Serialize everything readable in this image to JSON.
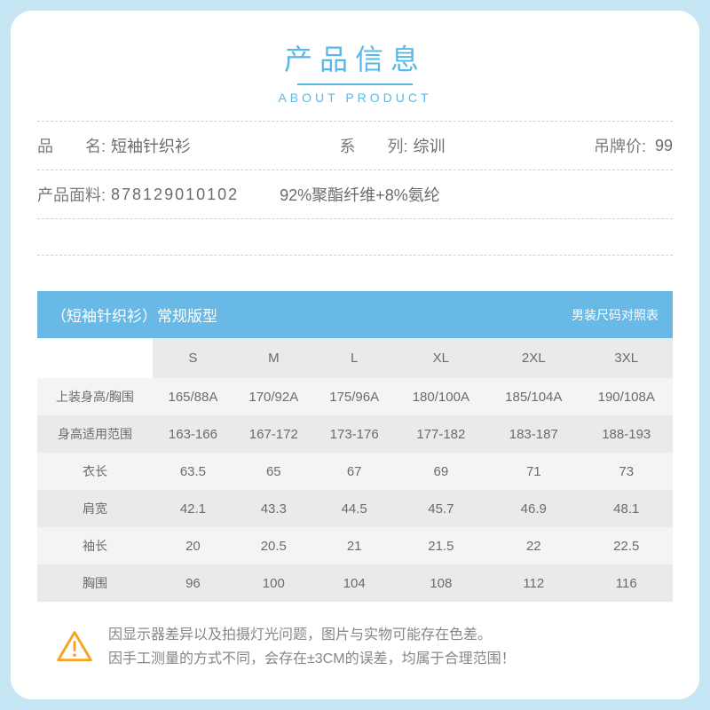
{
  "header": {
    "title_cn": "产品信息",
    "title_en": "ABOUT PRODUCT",
    "accent_color": "#5ab8e8"
  },
  "info": {
    "name_label": "品　　名:",
    "name_value": "短袖针织衫",
    "series_label": "系　　列:",
    "series_value": "综训",
    "price_label": "吊牌价:",
    "price_value": "99",
    "material_label": "产品面料:",
    "material_code": "878129010102",
    "material_value": "92%聚酯纤维+8%氨纶"
  },
  "size_table": {
    "banner_left": "（短袖针织衫）常规版型",
    "banner_right": "男装尺码对照表",
    "banner_bg": "#68b9e6",
    "columns": [
      "",
      "S",
      "M",
      "L",
      "XL",
      "2XL",
      "3XL"
    ],
    "rows": [
      [
        "上装身高/胸围",
        "165/88A",
        "170/92A",
        "175/96A",
        "180/100A",
        "185/104A",
        "190/108A"
      ],
      [
        "身高适用范围",
        "163-166",
        "167-172",
        "173-176",
        "177-182",
        "183-187",
        "188-193"
      ],
      [
        "衣长",
        "63.5",
        "65",
        "67",
        "69",
        "71",
        "73"
      ],
      [
        "肩宽",
        "42.1",
        "43.3",
        "44.5",
        "45.7",
        "46.9",
        "48.1"
      ],
      [
        "袖长",
        "20",
        "20.5",
        "21",
        "21.5",
        "22",
        "22.5"
      ],
      [
        "胸围",
        "96",
        "100",
        "104",
        "108",
        "112",
        "116"
      ]
    ],
    "row_odd_bg": "#f3f4f6",
    "row_even_bg": "#e9eaec",
    "header_bg": "#e9eaec",
    "text_color": "#6b6b6b"
  },
  "notice": {
    "line1": "因显示器差异以及拍摄灯光问题，图片与实物可能存在色差。",
    "line2": "因手工测量的方式不同，会存在±3CM的误差，均属于合理范围！",
    "icon_color": "#f5a623"
  }
}
